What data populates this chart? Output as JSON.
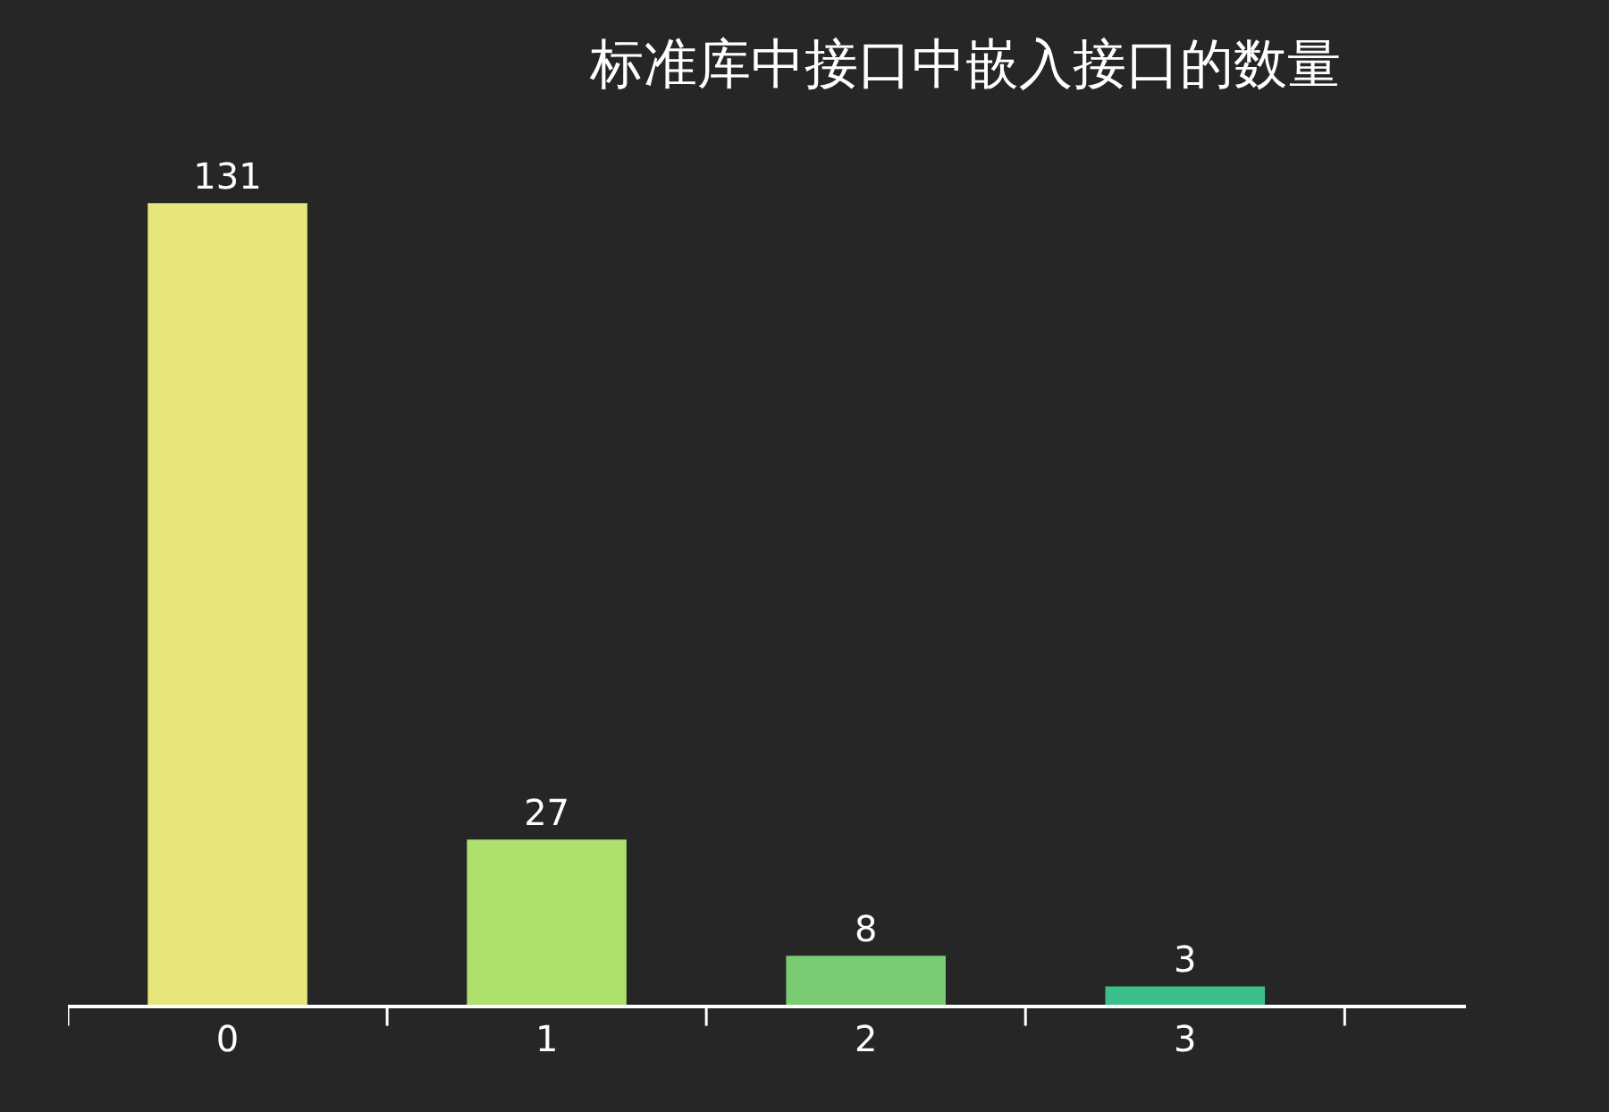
{
  "chart_data": {
    "type": "bar",
    "title": "标准库中接口中嵌入接口的数量",
    "categories": [
      "0",
      "1",
      "2",
      "3"
    ],
    "values": [
      131,
      27,
      8,
      3
    ],
    "colors": [
      "#e6e67a",
      "#aee06e",
      "#7acc74",
      "#3bbf8a"
    ],
    "data_labels": true,
    "tick_labels": "x"
  }
}
